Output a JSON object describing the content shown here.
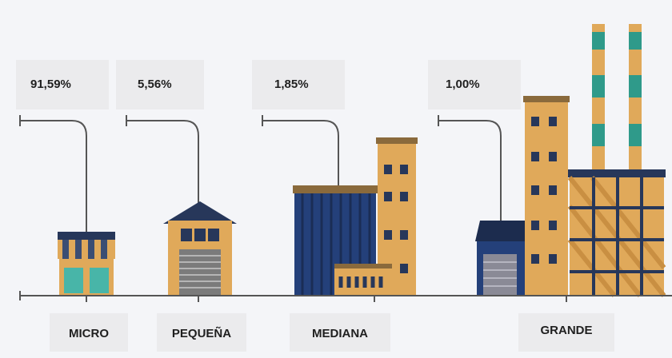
{
  "items": [
    {
      "percent": "91,59%",
      "label": "MICRO"
    },
    {
      "percent": "5,56%",
      "label": "PEQUEÑA"
    },
    {
      "percent": "1,85%",
      "label": "MEDIANA"
    },
    {
      "percent": "1,00%",
      "label": "GRANDE"
    }
  ]
}
